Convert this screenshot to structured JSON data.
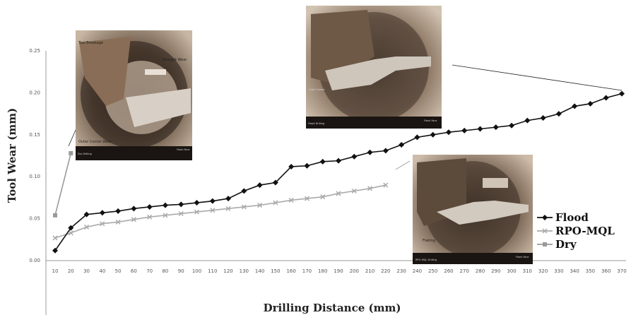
{
  "chart_data": {
    "type": "line",
    "xlabel": "Drilling Distance (mm)",
    "ylabel": "Tool Wear (mm)",
    "xlim": [
      10,
      370
    ],
    "ylim": [
      0,
      0.25
    ],
    "x_ticks": [
      10,
      20,
      30,
      40,
      50,
      60,
      70,
      80,
      90,
      100,
      110,
      120,
      130,
      140,
      150,
      160,
      170,
      180,
      190,
      200,
      210,
      220,
      230,
      240,
      250,
      260,
      270,
      280,
      290,
      300,
      310,
      320,
      330,
      340,
      350,
      360,
      370
    ],
    "y_ticks": [
      0.0,
      0.05,
      0.1,
      0.15,
      0.2,
      0.25
    ],
    "y_tick_labels": [
      "0.00",
      "0.05",
      "0.10",
      "0.15",
      "0.20",
      "0.25"
    ],
    "legend_position": "right",
    "grid": false,
    "series": [
      {
        "name": "Flood",
        "color": "#111111",
        "marker": "diamond",
        "x": [
          10,
          20,
          30,
          40,
          50,
          60,
          70,
          80,
          90,
          100,
          110,
          120,
          130,
          140,
          150,
          160,
          170,
          180,
          190,
          200,
          210,
          220,
          230,
          240,
          250,
          260,
          270,
          280,
          290,
          300,
          310,
          320,
          330,
          340,
          350,
          360,
          370
        ],
        "y": [
          0.012,
          0.039,
          0.055,
          0.057,
          0.059,
          0.062,
          0.064,
          0.066,
          0.067,
          0.069,
          0.071,
          0.074,
          0.083,
          0.09,
          0.093,
          0.112,
          0.113,
          0.118,
          0.119,
          0.124,
          0.129,
          0.131,
          0.138,
          0.147,
          0.15,
          0.153,
          0.155,
          0.157,
          0.159,
          0.161,
          0.167,
          0.17,
          0.175,
          0.184,
          0.187,
          0.194,
          0.199
        ]
      },
      {
        "name": "RPO-MQL",
        "color": "#aaaaaa",
        "marker": "cross",
        "x": [
          10,
          20,
          30,
          40,
          50,
          60,
          70,
          80,
          90,
          100,
          110,
          120,
          130,
          140,
          150,
          160,
          170,
          180,
          190,
          200,
          210,
          220
        ],
        "y": [
          0.027,
          0.033,
          0.04,
          0.044,
          0.046,
          0.049,
          0.052,
          0.054,
          0.056,
          0.058,
          0.06,
          0.062,
          0.064,
          0.066,
          0.069,
          0.072,
          0.074,
          0.076,
          0.08,
          0.083,
          0.086,
          0.09
        ]
      },
      {
        "name": "Dry",
        "color": "#9a9a9a",
        "marker": "square",
        "x": [
          10,
          20
        ],
        "y": [
          0.054,
          0.128
        ]
      }
    ],
    "annotations": {
      "photo_left": {
        "labels": [
          "Tool Breakage",
          "Straight Wear",
          "Outer Corner Wear"
        ],
        "caption_left": "Dry Drilling",
        "caption_right": "Flank Face"
      },
      "photo_top": {
        "caption_left": "Flood Drilling",
        "caption_right": "Flank Face"
      },
      "photo_right": {
        "labels": [
          "Flaking"
        ],
        "caption_left": "RPO-MQL Drilling",
        "caption_right": "Flank Face"
      }
    }
  }
}
